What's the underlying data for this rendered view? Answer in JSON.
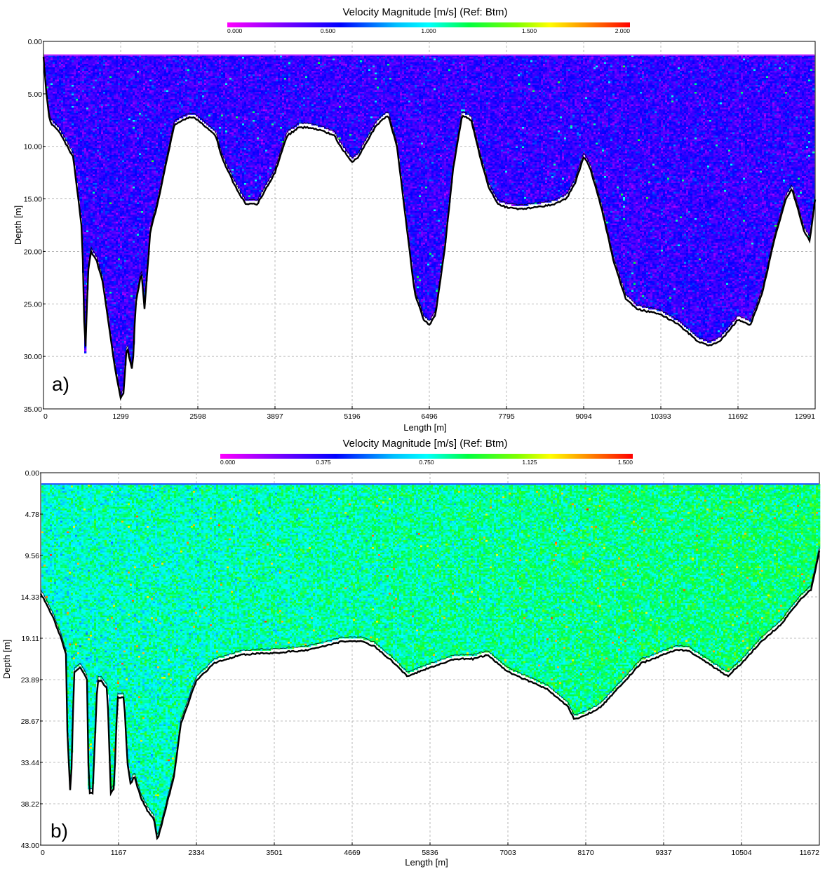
{
  "chart_data": [
    {
      "type": "heatmap",
      "panel_label": "a)",
      "title": "Velocity Magnitude [m/s] (Ref: Btm)",
      "xlabel": "Length [m]",
      "ylabel": "Depth [m]",
      "xlim": [
        0,
        12991
      ],
      "ylim": [
        0,
        35
      ],
      "x_ticks": [
        "0",
        "1299",
        "2598",
        "3897",
        "5196",
        "6496",
        "7795",
        "9094",
        "10393",
        "11692",
        "12991"
      ],
      "y_ticks": [
        "0.00",
        "5.00",
        "10.00",
        "15.00",
        "20.00",
        "25.00",
        "30.00",
        "35.00"
      ],
      "colorbar": {
        "range": [
          0,
          2.0
        ],
        "ticks": [
          "0.000",
          "0.500",
          "1.000",
          "1.500",
          "2.000"
        ]
      },
      "grid": true,
      "surface_depth": 1.3,
      "dominant_velocity": 0.45,
      "bed_profile": {
        "length": [
          0,
          50,
          100,
          150,
          250,
          350,
          500,
          650,
          700,
          750,
          800,
          900,
          1000,
          1100,
          1200,
          1299,
          1350,
          1400,
          1500,
          1550,
          1650,
          1700,
          1800,
          1900,
          2050,
          2200,
          2350,
          2500,
          2598,
          2700,
          2800,
          2900,
          3000,
          3200,
          3400,
          3600,
          3897,
          4100,
          4300,
          4500,
          4700,
          4900,
          5000,
          5196,
          5300,
          5400,
          5600,
          5800,
          5950,
          6100,
          6250,
          6400,
          6496,
          6600,
          6750,
          6900,
          7050,
          7200,
          7350,
          7500,
          7650,
          7795,
          8000,
          8300,
          8600,
          8800,
          8950,
          9094,
          9200,
          9400,
          9600,
          9800,
          10000,
          10393,
          10700,
          11000,
          11200,
          11400,
          11692,
          11900,
          12100,
          12300,
          12500,
          12600,
          12700,
          12800,
          12900,
          12991
        ],
        "depth": [
          1.5,
          5.0,
          7.5,
          8.0,
          8.5,
          9.5,
          11.0,
          18.0,
          30.5,
          22.0,
          20.0,
          21.0,
          23.0,
          27.0,
          31.0,
          34.0,
          33.5,
          29.0,
          31.5,
          25.0,
          22.0,
          25.5,
          18.0,
          16.0,
          12.0,
          8.0,
          7.5,
          7.2,
          7.5,
          8.0,
          8.5,
          9.0,
          11.0,
          13.5,
          15.5,
          15.5,
          12.5,
          9.0,
          8.2,
          8.2,
          8.5,
          9.0,
          10.0,
          11.5,
          11.0,
          10.0,
          8.0,
          7.0,
          10.0,
          17.0,
          24.0,
          26.5,
          27.0,
          26.0,
          20.0,
          12.0,
          7.0,
          7.5,
          11.0,
          14.0,
          15.5,
          15.8,
          16.0,
          15.8,
          15.5,
          15.0,
          13.5,
          11.0,
          12.0,
          16.0,
          21.0,
          24.5,
          25.5,
          26.0,
          27.0,
          28.5,
          29.0,
          28.5,
          26.5,
          27.0,
          24.0,
          19.0,
          15.0,
          14.0,
          16.0,
          18.0,
          19.0,
          15.0
        ]
      }
    },
    {
      "type": "heatmap",
      "panel_label": "b)",
      "title": "Velocity Magnitude [m/s] (Ref: Btm)",
      "xlabel": "Length [m]",
      "ylabel": "Depth [m]",
      "xlim": [
        0,
        11672
      ],
      "ylim": [
        0,
        43
      ],
      "x_ticks": [
        "0",
        "1167",
        "2334",
        "3501",
        "4669",
        "5836",
        "7003",
        "8170",
        "9337",
        "10504",
        "11672"
      ],
      "y_ticks": [
        "0.00",
        "4.78",
        "9.56",
        "14.33",
        "19.11",
        "23.89",
        "28.67",
        "33.44",
        "38.22",
        "43.00"
      ],
      "colorbar": {
        "range": [
          0,
          1.5
        ],
        "ticks": [
          "0.000",
          "0.375",
          "0.750",
          "1.125",
          "1.500"
        ]
      },
      "grid": true,
      "surface_depth": 1.3,
      "dominant_velocity": 0.78,
      "bed_profile": {
        "length": [
          0,
          80,
          200,
          300,
          380,
          400,
          450,
          500,
          600,
          700,
          720,
          780,
          850,
          900,
          1000,
          1050,
          1100,
          1150,
          1250,
          1300,
          1350,
          1400,
          1500,
          1600,
          1700,
          1750,
          1800,
          1900,
          2000,
          2100,
          2334,
          2600,
          3000,
          3501,
          4000,
          4500,
          4800,
          5000,
          5300,
          5500,
          5836,
          6200,
          6500,
          6700,
          7003,
          7300,
          7600,
          7900,
          8000,
          8170,
          8400,
          8700,
          9000,
          9337,
          9500,
          9700,
          10000,
          10300,
          10504,
          10800,
          11100,
          11400,
          11550,
          11672
        ],
        "depth": [
          14.0,
          15.0,
          17.0,
          19.0,
          21.0,
          30.0,
          38.0,
          23.0,
          22.5,
          24.0,
          37.0,
          37.0,
          24.0,
          24.0,
          25.0,
          37.0,
          36.5,
          26.0,
          26.0,
          33.5,
          36.0,
          35.0,
          37.5,
          39.0,
          40.0,
          42.5,
          41.0,
          38.0,
          35.0,
          29.0,
          24.0,
          22.0,
          21.0,
          20.8,
          20.5,
          19.5,
          19.5,
          20.0,
          22.0,
          23.5,
          22.5,
          21.5,
          21.5,
          21.0,
          23.0,
          24.0,
          25.0,
          27.0,
          28.5,
          28.0,
          27.0,
          24.5,
          22.0,
          21.0,
          20.5,
          20.5,
          22.0,
          23.5,
          22.0,
          19.5,
          17.5,
          14.5,
          13.5,
          9.0
        ]
      }
    }
  ]
}
